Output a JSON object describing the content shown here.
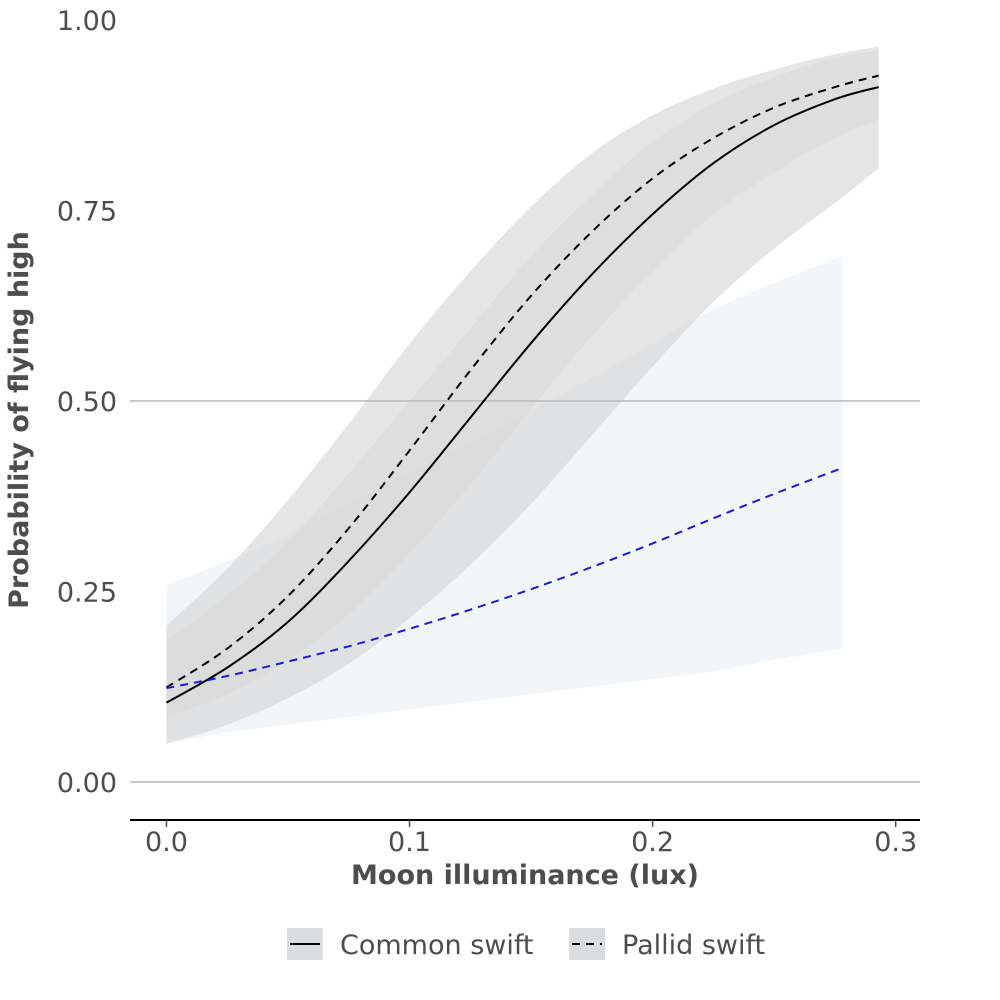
{
  "chart_data": {
    "type": "line",
    "xlabel": "Moon illuminance (lux)",
    "ylabel": "Probability of flying high",
    "xlim": [
      -0.015,
      0.31
    ],
    "ylim": [
      -0.05,
      1.0
    ],
    "x_ticks": [
      {
        "value": 0.0,
        "label": "0.0"
      },
      {
        "value": 0.1,
        "label": "0.1"
      },
      {
        "value": 0.2,
        "label": "0.2"
      },
      {
        "value": 0.3,
        "label": "0.3"
      }
    ],
    "y_ticks": [
      {
        "value": 0.0,
        "label": "0.00"
      },
      {
        "value": 0.25,
        "label": "0.25"
      },
      {
        "value": 0.5,
        "label": "0.50"
      },
      {
        "value": 0.75,
        "label": "0.75"
      },
      {
        "value": 1.0,
        "label": "1.00"
      }
    ],
    "gridlines_y": [
      0.0,
      0.5
    ],
    "legend_position": "bottom",
    "legend": [
      {
        "label": "Common swift",
        "linestyle": "solid"
      },
      {
        "label": "Pallid swift",
        "linestyle": "dashed"
      }
    ],
    "series": [
      {
        "linestyle": "solid",
        "color": "#000000",
        "band_color": "#d9d9d9",
        "x": [
          0.0,
          0.025,
          0.05,
          0.075,
          0.1,
          0.125,
          0.15,
          0.175,
          0.2,
          0.225,
          0.25,
          0.275,
          0.293
        ],
        "y": [
          0.104,
          0.15,
          0.21,
          0.29,
          0.38,
          0.478,
          0.576,
          0.666,
          0.745,
          0.812,
          0.862,
          0.896,
          0.912
        ],
        "lower": [
          0.085,
          0.115,
          0.16,
          0.22,
          0.3,
          0.39,
          0.49,
          0.585,
          0.67,
          0.745,
          0.8,
          0.845,
          0.87
        ],
        "upper": [
          0.185,
          0.245,
          0.315,
          0.405,
          0.5,
          0.595,
          0.69,
          0.77,
          0.84,
          0.89,
          0.925,
          0.95,
          0.96
        ]
      },
      {
        "linestyle": "dashed",
        "color": "#000000",
        "band_color": "#cfcfcf",
        "x": [
          0.0,
          0.025,
          0.05,
          0.075,
          0.1,
          0.125,
          0.15,
          0.175,
          0.2,
          0.225,
          0.25,
          0.275,
          0.293
        ],
        "y": [
          0.124,
          0.175,
          0.244,
          0.333,
          0.435,
          0.54,
          0.638,
          0.722,
          0.792,
          0.845,
          0.885,
          0.912,
          0.927
        ],
        "lower": [
          0.05,
          0.075,
          0.11,
          0.155,
          0.215,
          0.285,
          0.365,
          0.455,
          0.545,
          0.63,
          0.7,
          0.76,
          0.805
        ],
        "upper": [
          0.205,
          0.28,
          0.37,
          0.47,
          0.575,
          0.67,
          0.755,
          0.825,
          0.875,
          0.91,
          0.935,
          0.955,
          0.965
        ]
      },
      {
        "linestyle": "dashed",
        "color": "#1a1adb",
        "band_color": "#eef3f6",
        "x": [
          0.0,
          0.025,
          0.05,
          0.075,
          0.1,
          0.125,
          0.15,
          0.175,
          0.2,
          0.225,
          0.25,
          0.278
        ],
        "y": [
          0.123,
          0.139,
          0.158,
          0.178,
          0.201,
          0.226,
          0.253,
          0.282,
          0.313,
          0.346,
          0.378,
          0.412
        ],
        "lower": [
          0.05,
          0.065,
          0.075,
          0.085,
          0.095,
          0.105,
          0.115,
          0.125,
          0.135,
          0.145,
          0.16,
          0.175
        ],
        "upper": [
          0.258,
          0.29,
          0.325,
          0.365,
          0.405,
          0.445,
          0.487,
          0.53,
          0.575,
          0.62,
          0.655,
          0.69
        ]
      }
    ]
  }
}
